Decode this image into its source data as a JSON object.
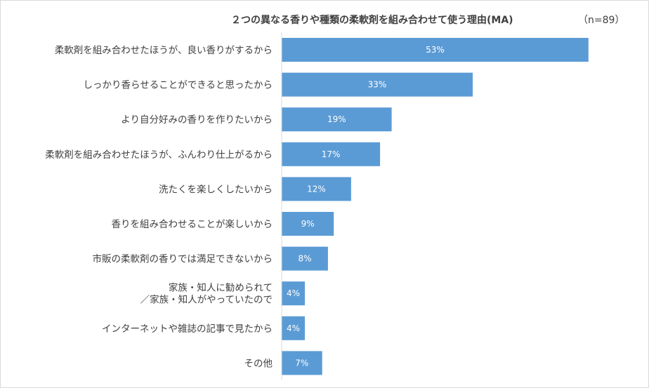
{
  "chart_data": {
    "type": "bar",
    "orientation": "horizontal",
    "title": "２つの異なる香りや種類の柔軟剤を組み合わせて使う理由(MA)",
    "note": "（n=89）",
    "categories": [
      "柔軟剤を組み合わせたほうが、良い香りがするから",
      "しっかり香らせることができると思ったから",
      "より自分好みの香りを作りたいから",
      "柔軟剤を組み合わせたほうが、ふんわり仕上がるから",
      "洗たくを楽しくしたいから",
      "香りを組み合わせることが楽しいから",
      "市販の柔軟剤の香りでは満足できないから",
      "家族・知人に勧められて\n／家族・知人がやっていたので",
      "インターネットや雑誌の記事で見たから",
      "その他"
    ],
    "values": [
      53,
      33,
      19,
      17,
      12,
      9,
      8,
      4,
      4,
      7
    ],
    "value_labels": [
      "53%",
      "33%",
      "19%",
      "17%",
      "12%",
      "9%",
      "8%",
      "4%",
      "4%",
      "7%"
    ],
    "unit": "%",
    "xlim": [
      0,
      58
    ],
    "bar_color": "#5b9bd5",
    "axis_color": "#d9d9d9",
    "grid": false,
    "legend": "none"
  }
}
